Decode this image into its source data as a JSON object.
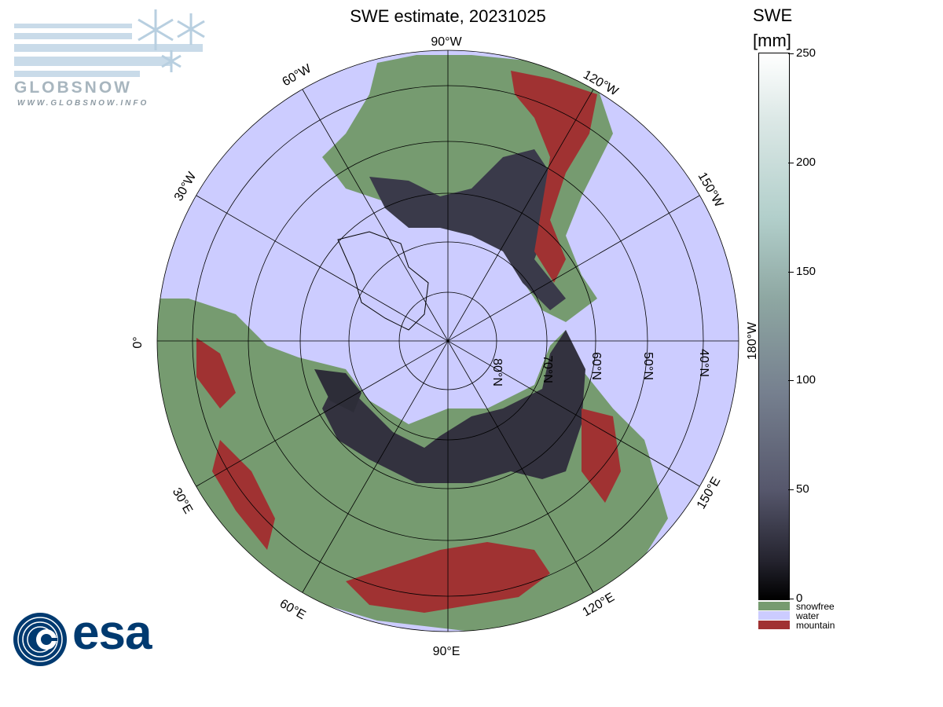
{
  "title": "SWE estimate, 20231025",
  "map": {
    "projection": "north polar stereographic",
    "meridian_labels": [
      {
        "key": "m90w",
        "text": "90°W",
        "lon_deg": -90
      },
      {
        "key": "m120w",
        "text": "120°W",
        "lon_deg": -120
      },
      {
        "key": "m150w",
        "text": "150°W",
        "lon_deg": -150
      },
      {
        "key": "m180w",
        "text": "180°W",
        "lon_deg": 180
      },
      {
        "key": "m150e",
        "text": "150°E",
        "lon_deg": 150
      },
      {
        "key": "m120e",
        "text": "120°E",
        "lon_deg": 120
      },
      {
        "key": "m90e",
        "text": "90°E",
        "lon_deg": 90
      },
      {
        "key": "m60e",
        "text": "60°E",
        "lon_deg": 60
      },
      {
        "key": "m30e",
        "text": "30°E",
        "lon_deg": 30
      },
      {
        "key": "m0",
        "text": "0°",
        "lon_deg": 0
      },
      {
        "key": "m30w",
        "text": "30°W",
        "lon_deg": -30
      },
      {
        "key": "m60w",
        "text": "60°W",
        "lon_deg": -60
      }
    ],
    "parallel_labels": [
      {
        "key": "p80",
        "text": "80°N",
        "lat_deg": 80
      },
      {
        "key": "p70",
        "text": "70°N",
        "lat_deg": 70
      },
      {
        "key": "p60",
        "text": "60°N",
        "lat_deg": 60
      },
      {
        "key": "p50",
        "text": "50°N",
        "lat_deg": 50
      },
      {
        "key": "p40",
        "text": "40°N",
        "lat_deg": 40
      }
    ],
    "colors": {
      "water": "#ccccff",
      "snowfree": "#769b70",
      "mountain": "#a03232",
      "snow_deep": "#4a4a5c",
      "snow_shallow": "#2a2a36"
    }
  },
  "colorbar": {
    "title_line1": "SWE",
    "title_line2": "[mm]",
    "min": 0,
    "max": 250,
    "ticks": [
      {
        "value": 250,
        "label": "250"
      },
      {
        "value": 200,
        "label": "200"
      },
      {
        "value": 150,
        "label": "150"
      },
      {
        "value": 100,
        "label": "100"
      },
      {
        "value": 50,
        "label": "50"
      },
      {
        "value": 0,
        "label": "0"
      }
    ],
    "categories": [
      {
        "label": "snowfree",
        "color": "#769b70"
      },
      {
        "label": "water",
        "color": "#ccccff"
      },
      {
        "label": "mountain",
        "color": "#a03232"
      }
    ]
  },
  "logos": {
    "globsnow_word": "GLOBSNOW",
    "globsnow_url": "WWW.GLOBSNOW.INFO",
    "esa_word": "esa"
  }
}
